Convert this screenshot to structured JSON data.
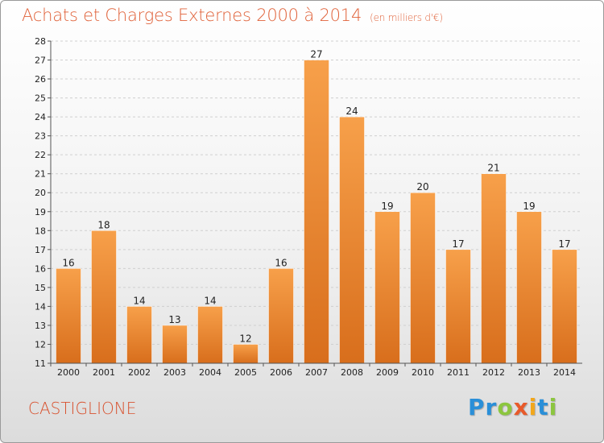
{
  "header": {
    "title": "Achats et Charges Externes 2000 à 2014",
    "subtitle": "(en milliers d'€)"
  },
  "commune": "CASTIGLIONE",
  "logo": {
    "letters": [
      "P",
      "r",
      "o",
      "x",
      "i",
      "t",
      "i"
    ],
    "colors": [
      "#2a8fd8",
      "#2a8fd8",
      "#8cc63f",
      "#e85a2a",
      "#f2a71b",
      "#2a8fd8",
      "#8cc63f"
    ]
  },
  "chart_data": {
    "type": "bar",
    "title": "Achats et Charges Externes 2000 à 2014",
    "subtitle": "(en milliers d'€)",
    "categories": [
      "2000",
      "2001",
      "2002",
      "2003",
      "2004",
      "2005",
      "2006",
      "2007",
      "2008",
      "2009",
      "2010",
      "2011",
      "2012",
      "2013",
      "2014"
    ],
    "values": [
      16,
      18,
      14,
      13,
      14,
      12,
      16,
      27,
      24,
      19,
      20,
      17,
      21,
      19,
      17
    ],
    "ylim": [
      11,
      28
    ],
    "yticks": [
      11,
      12,
      13,
      14,
      15,
      16,
      17,
      18,
      19,
      20,
      21,
      22,
      23,
      24,
      25,
      26,
      27,
      28
    ],
    "grid": true,
    "bar_color_top": "#f7a04a",
    "bar_color_bottom": "#d86e1c"
  }
}
